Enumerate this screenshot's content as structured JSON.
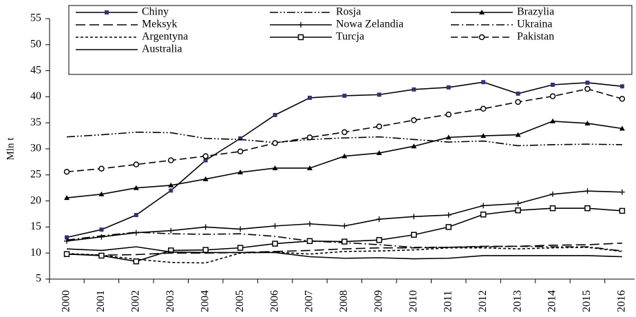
{
  "chart_data": {
    "type": "line",
    "y_label": "Mln t",
    "categories": [
      "2000",
      "2001",
      "2002",
      "2003",
      "2004",
      "2005",
      "2006",
      "2007",
      "2008",
      "2009",
      "2010",
      "2011",
      "2012",
      "2013",
      "2014",
      "2015",
      "2016"
    ],
    "ylim": [
      5,
      55
    ],
    "yticks": [
      5,
      10,
      15,
      20,
      25,
      30,
      35,
      40,
      45,
      50,
      55
    ],
    "series": [
      {
        "name": "Chiny",
        "color": "#000000",
        "marker_color": "#333377",
        "marker": "square",
        "dash": "solid",
        "values": [
          13,
          14.5,
          17.3,
          22,
          27.8,
          32,
          36.5,
          39.8,
          40.2,
          40.4,
          41.4,
          41.8,
          42.8,
          40.6,
          42.3,
          42.7,
          42
        ]
      },
      {
        "name": "Rosja",
        "color": "#000000",
        "marker": "none",
        "dash": "dashdotdot",
        "values": [
          32.3,
          32.7,
          33.2,
          33.1,
          32,
          31.8,
          31.2,
          31.8,
          32.1,
          32.3,
          31.8,
          31.3,
          31.5,
          30.6,
          30.8,
          30.9,
          30.8
        ]
      },
      {
        "name": "Brazylia",
        "color": "#000000",
        "marker": "triangle",
        "dash": "solid",
        "values": [
          20.6,
          21.3,
          22.5,
          23,
          24.2,
          25.5,
          26.3,
          26.3,
          28.6,
          29.2,
          30.5,
          32.2,
          32.5,
          32.7,
          35.3,
          34.9,
          33.9
        ]
      },
      {
        "name": "Meksyk",
        "color": "#000000",
        "marker": "none",
        "dash": "longdash",
        "values": [
          9.8,
          9.6,
          9.7,
          10,
          10,
          10.1,
          10.3,
          10.5,
          10.8,
          11,
          11,
          11.1,
          11.3,
          11.3,
          11.5,
          11.6,
          11.9
        ]
      },
      {
        "name": "Nowa Zelandia",
        "color": "#000000",
        "marker": "plus",
        "dash": "solid",
        "values": [
          12.3,
          13.1,
          13.9,
          14.3,
          15,
          14.6,
          15.2,
          15.6,
          15.2,
          16.5,
          17,
          17.3,
          19.1,
          19.5,
          21.3,
          21.9,
          21.7
        ]
      },
      {
        "name": "Ukraina",
        "color": "#000000",
        "marker": "none",
        "dash": "dashdot",
        "values": [
          12.5,
          13.3,
          14,
          13.7,
          13.6,
          13.7,
          13.2,
          12.3,
          12,
          11.6,
          11.1,
          11.1,
          11.2,
          11.3,
          11.2,
          11.2,
          10.4
        ]
      },
      {
        "name": "Argentyna",
        "color": "#000000",
        "marker": "none",
        "dash": "shortdash",
        "values": [
          9.9,
          9.6,
          8.8,
          8.2,
          8.1,
          10,
          10.2,
          9.8,
          10.3,
          10.4,
          10.6,
          11,
          11,
          10.8,
          11,
          11.1,
          10.3
        ]
      },
      {
        "name": "Turcja",
        "color": "#000000",
        "marker": "opensquare",
        "dash": "solid",
        "values": [
          9.8,
          9.5,
          8.4,
          10.5,
          10.6,
          11,
          11.8,
          12.3,
          12.2,
          12.5,
          13.5,
          15,
          17.4,
          18.2,
          18.6,
          18.6,
          18.1
        ]
      },
      {
        "name": "Pakistan",
        "color": "#000000",
        "marker": "circle",
        "dash": "dash",
        "values": [
          25.6,
          26.2,
          27,
          27.8,
          28.6,
          29.5,
          31.1,
          32.2,
          33.2,
          34.3,
          35.5,
          36.6,
          37.7,
          39,
          40.1,
          41.5,
          39.6
        ]
      },
      {
        "name": "Australia",
        "color": "#000000",
        "marker": "none",
        "dash": "solid",
        "values": [
          10.8,
          10.5,
          11.2,
          10.2,
          10.1,
          10.1,
          10.1,
          9.3,
          9,
          9.1,
          8.9,
          9,
          9.5,
          9.5,
          9.5,
          9.5,
          9.3
        ]
      }
    ]
  }
}
